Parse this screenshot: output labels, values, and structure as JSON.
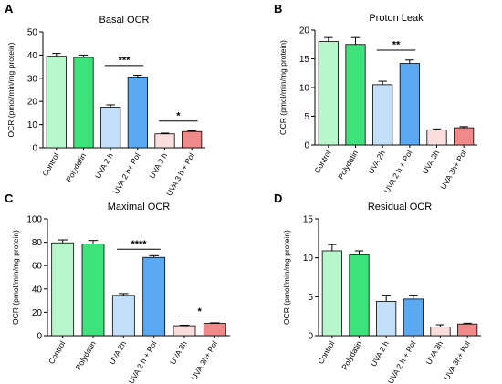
{
  "chart_data": [
    {
      "type": "bar",
      "panel_letter": "A",
      "title": "Basal OCR",
      "ylabel": "OCR (pmol/min/mg protein)",
      "ylim": [
        0,
        50
      ],
      "yticks": [
        0,
        10,
        20,
        30,
        40,
        50
      ],
      "categories": [
        "Control",
        "Polydatin",
        "UVA 2 h",
        "UVA 2 h+ Pol",
        "UVA 3 h",
        "UVA 3 h + Pol"
      ],
      "values": [
        39.5,
        39.0,
        17.5,
        30.5,
        6.0,
        7.0
      ],
      "errors": [
        1.2,
        1.0,
        1.0,
        0.8,
        0.3,
        0.3
      ],
      "colors": [
        "#b8f7cc",
        "#3ee27a",
        "#c3e0fb",
        "#5aa9f2",
        "#fadedd",
        "#f08a8a"
      ],
      "significance": [
        {
          "from": 2,
          "to": 3,
          "label": "***",
          "y": 35.5
        },
        {
          "from": 4,
          "to": 5,
          "label": "*",
          "y": 11.5
        }
      ]
    },
    {
      "type": "bar",
      "panel_letter": "B",
      "title": "Proton Leak",
      "ylabel": "OCR (pmol/min/mg protein)",
      "ylim": [
        0,
        20
      ],
      "yticks": [
        0,
        5,
        10,
        15,
        20
      ],
      "categories": [
        "Control",
        "Polydatin",
        "UVA 2h",
        "UVA 2 h + Pol",
        "UVA 3h",
        "UVA 3h+ Pol"
      ],
      "values": [
        18.0,
        17.5,
        10.5,
        14.2,
        2.6,
        3.0
      ],
      "errors": [
        0.7,
        1.2,
        0.6,
        0.6,
        0.2,
        0.2
      ],
      "colors": [
        "#b8f7cc",
        "#3ee27a",
        "#c3e0fb",
        "#5aa9f2",
        "#fadedd",
        "#f08a8a"
      ],
      "significance": [
        {
          "from": 2,
          "to": 3,
          "label": "**",
          "y": 16.5
        }
      ]
    },
    {
      "type": "bar",
      "panel_letter": "C",
      "title": "Maximal OCR",
      "ylabel": "OCR (pmol/min/mg protein)",
      "ylim": [
        0,
        100
      ],
      "yticks": [
        0,
        20,
        40,
        60,
        80,
        100
      ],
      "categories": [
        "Control",
        "Polydatin",
        "UVA 2h",
        "UVA 2 h + Pol",
        "UVA 3h",
        "UVA 3h+ Pol"
      ],
      "values": [
        79.5,
        78.5,
        34.5,
        67.0,
        8.5,
        10.5
      ],
      "errors": [
        2.5,
        3.0,
        1.5,
        1.5,
        0.5,
        0.5
      ],
      "colors": [
        "#b8f7cc",
        "#3ee27a",
        "#c3e0fb",
        "#5aa9f2",
        "#fadedd",
        "#f08a8a"
      ],
      "significance": [
        {
          "from": 2,
          "to": 3,
          "label": "****",
          "y": 74
        },
        {
          "from": 4,
          "to": 5,
          "label": "*",
          "y": 16
        }
      ]
    },
    {
      "type": "bar",
      "panel_letter": "D",
      "title": "Residual OCR",
      "ylabel": "OCR (pmol/min/mg protein)",
      "ylim": [
        0,
        15
      ],
      "yticks": [
        0,
        5,
        10,
        15
      ],
      "categories": [
        "Control",
        "Polydatin",
        "UVA 2 h",
        "UVA 2 h + Pol",
        "UVA 3h",
        "UVA 3h+ Pol"
      ],
      "values": [
        10.9,
        10.4,
        4.4,
        4.7,
        1.1,
        1.5
      ],
      "errors": [
        0.8,
        0.5,
        0.8,
        0.5,
        0.3,
        0.1
      ],
      "colors": [
        "#b8f7cc",
        "#3ee27a",
        "#c3e0fb",
        "#5aa9f2",
        "#fadedd",
        "#f08a8a"
      ],
      "significance": []
    }
  ]
}
